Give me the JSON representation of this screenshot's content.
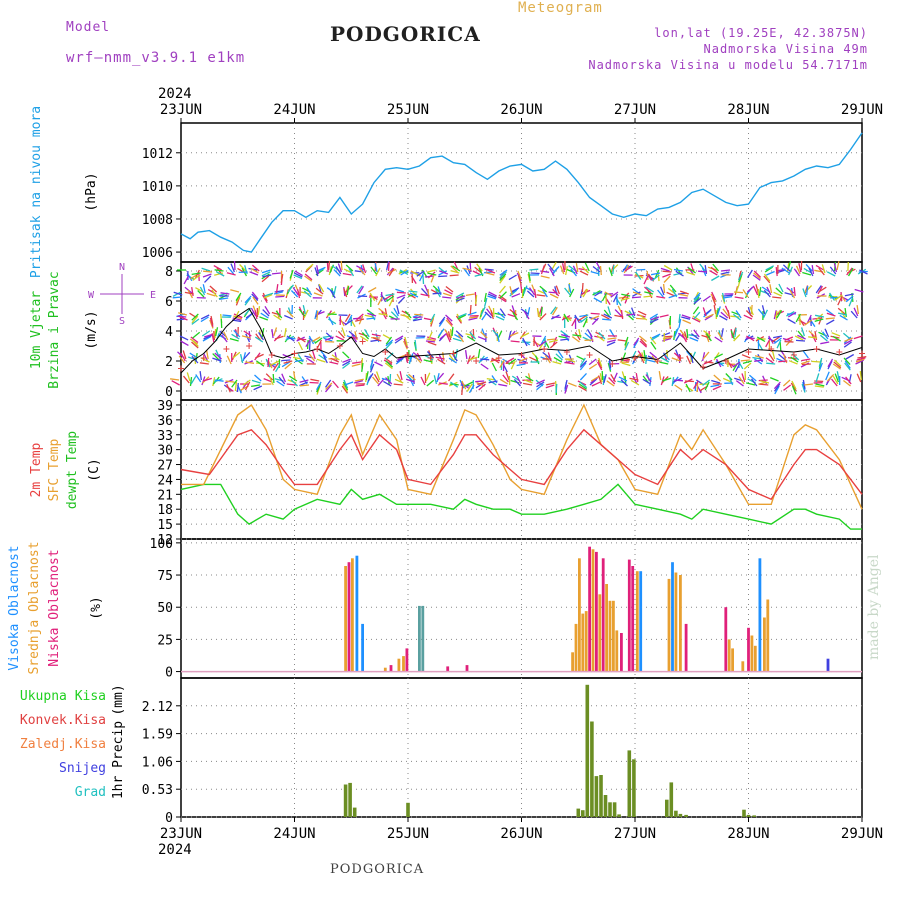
{
  "header": {
    "model_label": "Model",
    "model_version": "wrf–nmm_v3.9.1 e1km",
    "title": "PODGORICA",
    "meteogram": "Meteogram",
    "lonlat": "lon,lat (19.25E, 42.3875N)",
    "elevation": "Nadmorska Visina 49m",
    "elevation_model": "Nadmorska Visina u modelu 54.7171m"
  },
  "footer": {
    "station": "PODGORICA",
    "credit": "made by Angel"
  },
  "colors": {
    "pressure": "#1ea0e6",
    "temp2m": "#e84040",
    "sfc": "#e8a030",
    "dew": "#20d020",
    "cl_high": "#1e90ff",
    "cl_mid": "#e8a030",
    "cl_low": "#e0207a",
    "precip_total": "#6b8e23",
    "precip_conv": "#e04040",
    "snow": "#4040e0",
    "hail": "#20c0c0",
    "wind_axis": "#a040c0"
  },
  "chart_data": [
    {
      "type": "line",
      "panel": "pressure",
      "title": "",
      "ylabel_series": "Pritisak na nivou mora",
      "ylabel_unit": "(hPa)",
      "year": "2024",
      "x_categories": [
        "23JUN",
        "24JUN",
        "25JUN",
        "26JUN",
        "27JUN",
        "28JUN",
        "29JUN"
      ],
      "ylim": [
        1005.4,
        1013.8
      ],
      "yticks": [
        1006,
        1008,
        1010,
        1012
      ],
      "grid": true,
      "series": [
        {
          "x": [
            0,
            0.08,
            0.15,
            0.25,
            0.35,
            0.45,
            0.55,
            0.62,
            0.7,
            0.8,
            0.9,
            1.0,
            1.1,
            1.2,
            1.3,
            1.4,
            1.5,
            1.6,
            1.7,
            1.8,
            1.9,
            2.0,
            2.1,
            2.2,
            2.3,
            2.4,
            2.5,
            2.6,
            2.7,
            2.8,
            2.9,
            3.0,
            3.1,
            3.2,
            3.3,
            3.4,
            3.5,
            3.6,
            3.7,
            3.8,
            3.9,
            4.0,
            4.1,
            4.2,
            4.3,
            4.4,
            4.5,
            4.6,
            4.7,
            4.8,
            4.9,
            5.0,
            5.1,
            5.2,
            5.3,
            5.4,
            5.5,
            5.6,
            5.7,
            5.8,
            5.9,
            6.0
          ],
          "y": [
            1007.1,
            1006.8,
            1007.2,
            1007.3,
            1006.9,
            1006.6,
            1006.1,
            1006.0,
            1006.8,
            1007.8,
            1008.5,
            1008.5,
            1008.1,
            1008.5,
            1008.4,
            1009.3,
            1008.3,
            1008.9,
            1010.2,
            1011.0,
            1011.1,
            1011.0,
            1011.2,
            1011.7,
            1011.8,
            1011.4,
            1011.3,
            1010.8,
            1010.4,
            1010.9,
            1011.2,
            1011.3,
            1010.9,
            1011.0,
            1011.5,
            1011.0,
            1010.2,
            1009.3,
            1008.8,
            1008.3,
            1008.1,
            1008.3,
            1008.2,
            1008.6,
            1008.7,
            1009.0,
            1009.6,
            1009.8,
            1009.4,
            1009.0,
            1008.8,
            1008.9,
            1009.9,
            1010.2,
            1010.3,
            1010.6,
            1011.0,
            1011.2,
            1011.1,
            1011.3,
            1012.2,
            1013.2
          ]
        }
      ]
    },
    {
      "type": "line",
      "panel": "wind",
      "ylabel_series1": "10m Vjetar",
      "ylabel_series2": "Brzina i Pravac",
      "ylabel_unit": "(m/s)",
      "compass": {
        "n": "N",
        "s": "S",
        "e": "E",
        "w": "W"
      },
      "ylim": [
        -0.6,
        8.6
      ],
      "yticks": [
        0,
        2,
        4,
        6,
        8
      ],
      "grid": true,
      "series": [
        {
          "name": "",
          "style": "black-line",
          "x": [
            0,
            0.1,
            0.2,
            0.3,
            0.4,
            0.5,
            0.6,
            0.7,
            0.8,
            0.9,
            1.0,
            1.1,
            1.2,
            1.3,
            1.4,
            1.5,
            1.6,
            1.7,
            1.8,
            1.9,
            2.0,
            2.2,
            2.4,
            2.6,
            2.8,
            3.0,
            3.2,
            3.4,
            3.6,
            3.8,
            4.0,
            4.2,
            4.4,
            4.6,
            4.8,
            5.0,
            5.2,
            5.4,
            5.6,
            5.8,
            6.0
          ],
          "y": [
            1.2,
            2.0,
            2.5,
            3.3,
            4.3,
            5.0,
            5.5,
            4.2,
            2.4,
            2.2,
            2.5,
            2.6,
            2.8,
            2.5,
            3.0,
            3.6,
            2.5,
            2.3,
            2.8,
            2.2,
            2.3,
            2.4,
            2.5,
            3.2,
            2.4,
            2.5,
            2.8,
            2.7,
            3.0,
            2.0,
            2.3,
            2.1,
            3.2,
            1.5,
            2.1,
            2.8,
            2.7,
            2.6,
            2.8,
            2.4,
            2.9
          ]
        },
        {
          "name": "",
          "style": "red-crosses",
          "x": [
            0,
            0.2,
            0.4,
            0.6,
            0.8,
            1.0,
            1.2,
            1.4,
            1.6,
            1.8,
            2.0,
            2.2,
            2.4,
            2.6,
            2.8,
            3.0,
            3.2,
            3.4,
            3.6,
            3.8,
            4.0,
            4.2,
            4.4,
            4.6,
            4.8,
            5.0,
            5.2,
            5.4,
            5.6,
            5.8,
            6.0
          ],
          "y": [
            1.5,
            2.2,
            2.8,
            3.0,
            2.4,
            2.5,
            2.8,
            3.0,
            3.3,
            2.6,
            2.4,
            2.2,
            2.5,
            2.0,
            2.2,
            2.4,
            2.8,
            2.6,
            2.4,
            1.8,
            2.2,
            2.0,
            2.2,
            1.6,
            2.0,
            2.6,
            2.8,
            2.4,
            2.8,
            2.6,
            2.5
          ]
        }
      ]
    },
    {
      "type": "line",
      "panel": "temperature",
      "ylabel_t2m": "2m Temp",
      "ylabel_sfc": "SFC Temp",
      "ylabel_dew": "dewpt Temp",
      "ylabel_unit": "(C)",
      "ylim": [
        12,
        40
      ],
      "yticks": [
        12,
        15,
        18,
        21,
        24,
        27,
        30,
        33,
        36,
        39
      ],
      "grid": true,
      "series": [
        {
          "name": "2m Temp",
          "x": [
            0,
            0.25,
            0.5,
            0.62,
            0.75,
            0.9,
            1.0,
            1.2,
            1.4,
            1.5,
            1.6,
            1.75,
            1.9,
            2.0,
            2.2,
            2.4,
            2.5,
            2.6,
            2.75,
            2.9,
            3.0,
            3.2,
            3.4,
            3.55,
            3.7,
            3.85,
            4.0,
            4.2,
            4.4,
            4.5,
            4.6,
            4.8,
            5.0,
            5.2,
            5.4,
            5.5,
            5.6,
            5.8,
            6.0
          ],
          "y": [
            26,
            25,
            33,
            34,
            31,
            26,
            23,
            23,
            30,
            33,
            28,
            33,
            30,
            24,
            23,
            29,
            33,
            33,
            29,
            26,
            24,
            23,
            30,
            34,
            31,
            28,
            25,
            23,
            30,
            28,
            30,
            27,
            22,
            20,
            27,
            30,
            30,
            27,
            21
          ]
        },
        {
          "name": "SFC Temp",
          "x": [
            0,
            0.2,
            0.5,
            0.62,
            0.75,
            0.9,
            1.0,
            1.2,
            1.4,
            1.5,
            1.6,
            1.75,
            1.9,
            2.0,
            2.2,
            2.4,
            2.5,
            2.6,
            2.75,
            2.9,
            3.0,
            3.2,
            3.4,
            3.55,
            3.7,
            3.85,
            4.0,
            4.2,
            4.4,
            4.5,
            4.6,
            4.8,
            5.0,
            5.2,
            5.4,
            5.5,
            5.6,
            5.8,
            6.0
          ],
          "y": [
            23,
            23,
            37,
            39,
            34,
            24,
            22,
            21,
            33,
            37,
            29,
            37,
            32,
            22,
            21,
            32,
            38,
            37,
            31,
            24,
            22,
            21,
            32,
            39,
            31,
            28,
            22,
            21,
            33,
            30,
            34,
            27,
            19,
            19,
            33,
            35,
            34,
            28,
            18
          ]
        },
        {
          "name": "dewpt Temp",
          "x": [
            0,
            0.2,
            0.35,
            0.5,
            0.6,
            0.75,
            0.9,
            1.0,
            1.2,
            1.4,
            1.5,
            1.6,
            1.75,
            1.9,
            2.0,
            2.2,
            2.4,
            2.5,
            2.6,
            2.75,
            2.9,
            3.0,
            3.2,
            3.4,
            3.55,
            3.7,
            3.85,
            4.0,
            4.2,
            4.4,
            4.5,
            4.6,
            4.8,
            5.0,
            5.2,
            5.4,
            5.5,
            5.6,
            5.8,
            5.9,
            6.0
          ],
          "y": [
            22,
            23,
            23,
            17,
            15,
            17,
            16,
            18,
            20,
            19,
            22,
            20,
            21,
            19,
            19,
            19,
            18,
            20,
            19,
            18,
            18,
            17,
            17,
            18,
            19,
            20,
            23,
            19,
            18,
            17,
            16,
            18,
            17,
            16,
            15,
            18,
            18,
            17,
            16,
            14,
            14
          ]
        }
      ]
    },
    {
      "type": "bar",
      "panel": "clouds",
      "ylabel_high": "Visoka Oblacnost",
      "ylabel_mid": "Srednja Oblacnost",
      "ylabel_low": "Niska Oblacnost",
      "ylabel_unit": "(%)",
      "ylim": [
        -5,
        103
      ],
      "yticks": [
        0,
        25,
        50,
        75,
        100
      ],
      "grid": true,
      "bars": [
        {
          "x": 1.45,
          "series": "mid",
          "v": 82
        },
        {
          "x": 1.48,
          "series": "low",
          "v": 85
        },
        {
          "x": 1.51,
          "series": "mid",
          "v": 88
        },
        {
          "x": 1.55,
          "series": "high",
          "v": 90
        },
        {
          "x": 1.6,
          "series": "high",
          "v": 37
        },
        {
          "x": 1.8,
          "series": "mid",
          "v": 3
        },
        {
          "x": 1.85,
          "series": "low",
          "v": 5
        },
        {
          "x": 1.92,
          "series": "mid",
          "v": 10
        },
        {
          "x": 1.96,
          "series": "mid",
          "v": 12
        },
        {
          "x": 1.99,
          "series": "low",
          "v": 18
        },
        {
          "x": 2.1,
          "series": "hail",
          "v": 51
        },
        {
          "x": 2.13,
          "series": "hail",
          "v": 51
        },
        {
          "x": 2.35,
          "series": "low",
          "v": 4
        },
        {
          "x": 2.52,
          "series": "low",
          "v": 5
        },
        {
          "x": 3.45,
          "series": "mid",
          "v": 15
        },
        {
          "x": 3.48,
          "series": "mid",
          "v": 37
        },
        {
          "x": 3.51,
          "series": "mid",
          "v": 88
        },
        {
          "x": 3.54,
          "series": "mid",
          "v": 45
        },
        {
          "x": 3.57,
          "series": "mid",
          "v": 47
        },
        {
          "x": 3.6,
          "series": "low",
          "v": 97
        },
        {
          "x": 3.63,
          "series": "mid",
          "v": 95
        },
        {
          "x": 3.66,
          "series": "low",
          "v": 93
        },
        {
          "x": 3.69,
          "series": "mid",
          "v": 60
        },
        {
          "x": 3.72,
          "series": "low",
          "v": 88
        },
        {
          "x": 3.75,
          "series": "mid",
          "v": 68
        },
        {
          "x": 3.78,
          "series": "mid",
          "v": 55
        },
        {
          "x": 3.81,
          "series": "mid",
          "v": 55
        },
        {
          "x": 3.84,
          "series": "mid",
          "v": 32
        },
        {
          "x": 3.88,
          "series": "low",
          "v": 30
        },
        {
          "x": 3.95,
          "series": "low",
          "v": 87
        },
        {
          "x": 3.98,
          "series": "low",
          "v": 82
        },
        {
          "x": 4.02,
          "series": "mid",
          "v": 78
        },
        {
          "x": 4.05,
          "series": "high",
          "v": 78
        },
        {
          "x": 4.3,
          "series": "mid",
          "v": 72
        },
        {
          "x": 4.33,
          "series": "high",
          "v": 85
        },
        {
          "x": 4.36,
          "series": "mid",
          "v": 77
        },
        {
          "x": 4.4,
          "series": "mid",
          "v": 75
        },
        {
          "x": 4.45,
          "series": "low",
          "v": 37
        },
        {
          "x": 4.8,
          "series": "low",
          "v": 50
        },
        {
          "x": 4.83,
          "series": "mid",
          "v": 25
        },
        {
          "x": 4.86,
          "series": "mid",
          "v": 18
        },
        {
          "x": 4.95,
          "series": "mid",
          "v": 8
        },
        {
          "x": 5.0,
          "series": "low",
          "v": 34
        },
        {
          "x": 5.03,
          "series": "mid",
          "v": 28
        },
        {
          "x": 5.06,
          "series": "mid",
          "v": 20
        },
        {
          "x": 5.1,
          "series": "high",
          "v": 88
        },
        {
          "x": 5.14,
          "series": "mid",
          "v": 42
        },
        {
          "x": 5.17,
          "series": "mid",
          "v": 56
        },
        {
          "x": 5.7,
          "series": "snow",
          "v": 10
        }
      ]
    },
    {
      "type": "bar",
      "panel": "precip",
      "legend": [
        {
          "key": "total",
          "label": "Ukupna Kisa"
        },
        {
          "key": "conv",
          "label": "Konvek.Kisa"
        },
        {
          "key": "frz",
          "label": "Zaledj.Kisa"
        },
        {
          "key": "snow",
          "label": "Snijeg"
        },
        {
          "key": "hail",
          "label": "Grad"
        }
      ],
      "ylabel_series": "1hr Precip",
      "ylabel_unit": "(mm)",
      "year": "2024",
      "x_categories": [
        "23JUN",
        "24JUN",
        "25JUN",
        "26JUN",
        "27JUN",
        "28JUN",
        "29JUN"
      ],
      "ylim": [
        0,
        2.65
      ],
      "yticks": [
        0,
        0.53,
        1.06,
        1.59,
        2.12
      ],
      "ytick_labels": [
        "0",
        "0.53",
        "1.06",
        "1.59",
        "2.12"
      ],
      "grid": true,
      "bars": [
        {
          "x": 1.45,
          "v": 0.62
        },
        {
          "x": 1.49,
          "v": 0.65
        },
        {
          "x": 1.53,
          "v": 0.18
        },
        {
          "x": 2.0,
          "v": 0.27
        },
        {
          "x": 3.5,
          "v": 0.16
        },
        {
          "x": 3.54,
          "v": 0.13
        },
        {
          "x": 3.58,
          "v": 2.52
        },
        {
          "x": 3.62,
          "v": 1.82
        },
        {
          "x": 3.66,
          "v": 0.78
        },
        {
          "x": 3.7,
          "v": 0.8
        },
        {
          "x": 3.74,
          "v": 0.42
        },
        {
          "x": 3.78,
          "v": 0.28
        },
        {
          "x": 3.82,
          "v": 0.28
        },
        {
          "x": 3.86,
          "v": 0.05
        },
        {
          "x": 3.95,
          "v": 1.27
        },
        {
          "x": 3.99,
          "v": 1.1
        },
        {
          "x": 4.28,
          "v": 0.33
        },
        {
          "x": 4.32,
          "v": 0.66
        },
        {
          "x": 4.36,
          "v": 0.12
        },
        {
          "x": 4.4,
          "v": 0.06
        },
        {
          "x": 4.45,
          "v": 0.04
        },
        {
          "x": 4.96,
          "v": 0.14
        },
        {
          "x": 5.0,
          "v": 0.04
        },
        {
          "x": 5.05,
          "v": 0.03
        }
      ]
    }
  ]
}
